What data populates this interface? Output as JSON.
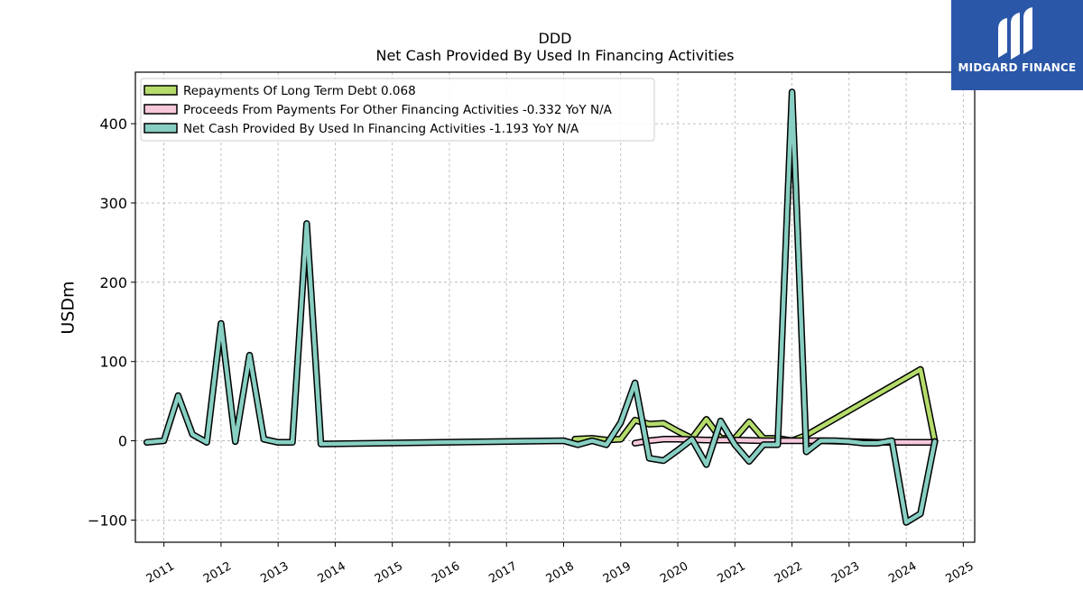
{
  "chart_data": {
    "type": "line",
    "title": "DDD",
    "subtitle": "Net Cash Provided By Used In Financing Activities",
    "ylabel": "USDm",
    "xlabel": "",
    "xlim": [
      2010.5,
      2025.2
    ],
    "ylim": [
      -128,
      465
    ],
    "yticks": [
      -100,
      0,
      100,
      200,
      300,
      400
    ],
    "ytick_labels": [
      "−100",
      "0",
      "100",
      "200",
      "300",
      "400"
    ],
    "xticks": [
      2011,
      2012,
      2013,
      2014,
      2015,
      2016,
      2017,
      2018,
      2019,
      2020,
      2021,
      2022,
      2023,
      2024,
      2025
    ],
    "xtick_labels": [
      "2011",
      "2012",
      "2013",
      "2014",
      "2015",
      "2016",
      "2017",
      "2018",
      "2019",
      "2020",
      "2021",
      "2022",
      "2023",
      "2024",
      "2025"
    ],
    "grid": true,
    "legend_position": "top-left",
    "series": [
      {
        "name": "Repayments Of Long Term Debt",
        "legend_label": "Repayments Of Long Term Debt  0.068",
        "color": "#b5dc6b",
        "x": [
          2018.2,
          2018.5,
          2018.75,
          2019.0,
          2019.25,
          2019.5,
          2019.75,
          2020.0,
          2020.25,
          2020.5,
          2020.75,
          2021.0,
          2021.25,
          2021.5,
          2021.75,
          2022.0,
          2022.25,
          2024.25,
          2024.5
        ],
        "values": [
          2,
          3,
          1,
          2,
          26,
          21,
          22,
          12,
          3,
          27,
          3,
          3,
          24,
          3,
          3,
          0,
          7,
          90,
          0
        ]
      },
      {
        "name": "Proceeds From Payments For Other Financing Activities",
        "legend_label": "Proceeds From Payments For Other Financing Activities  -0.332 YoY N/A",
        "color": "#f7c8dc",
        "x": [
          2019.25,
          2019.5,
          2019.75,
          2020.0,
          2020.5,
          2021.0,
          2021.5,
          2022.0,
          2022.5,
          2023.0,
          2023.5,
          2024.0,
          2024.5
        ],
        "values": [
          -3,
          0,
          2,
          2,
          1,
          1,
          0,
          0,
          0,
          -1,
          -2,
          -2,
          -2
        ]
      },
      {
        "name": "Net Cash Provided By Used In Financing Activities",
        "legend_label": "Net Cash Provided By Used In Financing Activities  -1.193 YoY N/A",
        "color": "#87cfc2",
        "x": [
          2010.7,
          2011.0,
          2011.25,
          2011.5,
          2011.75,
          2012.0,
          2012.25,
          2012.5,
          2012.75,
          2013.0,
          2013.25,
          2013.5,
          2013.75,
          2018.0,
          2018.25,
          2018.5,
          2018.75,
          2019.0,
          2019.25,
          2019.5,
          2019.75,
          2020.0,
          2020.25,
          2020.5,
          2020.75,
          2021.0,
          2021.25,
          2021.5,
          2021.75,
          2022.0,
          2022.25,
          2022.5,
          2022.75,
          2023.0,
          2023.25,
          2023.5,
          2023.75,
          2024.0,
          2024.25,
          2024.5
        ],
        "values": [
          -2,
          0,
          57,
          8,
          -2,
          148,
          -1,
          108,
          2,
          -2,
          -2,
          274,
          -4,
          0,
          -5,
          0,
          -5,
          23,
          73,
          -22,
          -25,
          -12,
          2,
          -30,
          25,
          -5,
          -26,
          -5,
          -5,
          440,
          -14,
          0,
          0,
          -1,
          -3,
          -3,
          0,
          -103,
          -92,
          -1
        ]
      }
    ]
  },
  "logo": {
    "text": "MIDGARD FINANCE",
    "color": "#2b57a8"
  }
}
